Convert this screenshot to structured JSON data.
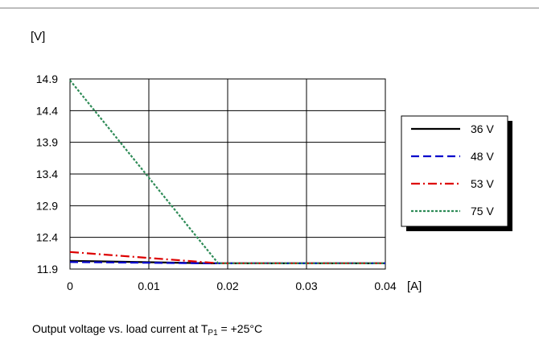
{
  "chart_data": {
    "type": "line",
    "ylabel": "[V]",
    "xlabel": "[A]",
    "xlim": [
      0,
      0.04
    ],
    "ylim": [
      11.9,
      14.9
    ],
    "x_ticks": [
      "0",
      "0.01",
      "0.02",
      "0.03",
      "0.04"
    ],
    "y_ticks": [
      "14.9",
      "14.4",
      "13.9",
      "13.4",
      "12.9",
      "12.4",
      "11.9"
    ],
    "grid": true,
    "legend_position": "right",
    "series": [
      {
        "name": "36 V",
        "color": "#000000",
        "dash": "solid",
        "points": [
          [
            0,
            12.03
          ],
          [
            0.018,
            11.99
          ],
          [
            0.04,
            11.99
          ]
        ]
      },
      {
        "name": "48 V",
        "color": "#0000cc",
        "dash": "dashed",
        "points": [
          [
            0,
            12.01
          ],
          [
            0.018,
            11.99
          ],
          [
            0.04,
            11.99
          ]
        ]
      },
      {
        "name": "53 V",
        "color": "#dd0000",
        "dash": "dashdot",
        "points": [
          [
            0,
            12.17
          ],
          [
            0.019,
            11.99
          ],
          [
            0.04,
            11.99
          ]
        ]
      },
      {
        "name": "75 V",
        "color": "#2e8b57",
        "dash": "dotted",
        "points": [
          [
            0,
            14.88
          ],
          [
            0.0188,
            11.99
          ],
          [
            0.04,
            11.99
          ]
        ]
      }
    ]
  },
  "caption": {
    "prefix": "Output voltage vs. load current at T",
    "subscript": "P1",
    "suffix": " = +25°C"
  }
}
